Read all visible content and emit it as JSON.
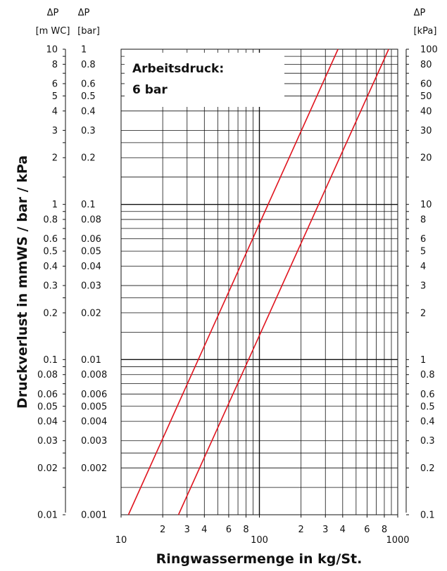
{
  "chart_data": {
    "type": "line",
    "title": "",
    "annotation": [
      "Arbeitsdruck:",
      "6 bar"
    ],
    "xlabel": "Ringwassermenge in kg/St.",
    "ylabel": "Druckverlust in mmWS / bar / kPa",
    "x_scale": "log",
    "y_scale": "log",
    "xlim": [
      10,
      1000
    ],
    "ylim": [
      0.001,
      1
    ],
    "grid": true,
    "x_tick_labels": [
      {
        "v": 10,
        "t": "10"
      },
      {
        "v": 20,
        "t": "2"
      },
      {
        "v": 30,
        "t": "3"
      },
      {
        "v": 40,
        "t": "4"
      },
      {
        "v": 60,
        "t": "6"
      },
      {
        "v": 80,
        "t": "8"
      },
      {
        "v": 100,
        "t": "100"
      },
      {
        "v": 200,
        "t": "2"
      },
      {
        "v": 300,
        "t": "3"
      },
      {
        "v": 400,
        "t": "4"
      },
      {
        "v": 600,
        "t": "6"
      },
      {
        "v": 800,
        "t": "8"
      },
      {
        "v": 1000,
        "t": "1000"
      }
    ],
    "left_axis_mwc": {
      "header": [
        "ΔP",
        "[m WC]"
      ],
      "labels": [
        {
          "v": 1,
          "t": "10"
        },
        {
          "v": 0.8,
          "t": "8"
        },
        {
          "v": 0.6,
          "t": "6"
        },
        {
          "v": 0.5,
          "t": "5"
        },
        {
          "v": 0.4,
          "t": "4"
        },
        {
          "v": 0.3,
          "t": "3"
        },
        {
          "v": 0.2,
          "t": "2"
        },
        {
          "v": 0.1,
          "t": "1"
        },
        {
          "v": 0.08,
          "t": "0.8"
        },
        {
          "v": 0.06,
          "t": "0.6"
        },
        {
          "v": 0.05,
          "t": "0.5"
        },
        {
          "v": 0.04,
          "t": "0.4"
        },
        {
          "v": 0.03,
          "t": "0.3"
        },
        {
          "v": 0.02,
          "t": "0.2"
        },
        {
          "v": 0.01,
          "t": "0.1"
        },
        {
          "v": 0.008,
          "t": "0.08"
        },
        {
          "v": 0.006,
          "t": "0.06"
        },
        {
          "v": 0.005,
          "t": "0.05"
        },
        {
          "v": 0.004,
          "t": "0.04"
        },
        {
          "v": 0.003,
          "t": "0.03"
        },
        {
          "v": 0.002,
          "t": "0.02"
        },
        {
          "v": 0.001,
          "t": "0.01"
        }
      ]
    },
    "left_axis_bar": {
      "header": [
        "ΔP",
        "[bar]"
      ],
      "labels": [
        {
          "v": 1,
          "t": "1"
        },
        {
          "v": 0.8,
          "t": "0.8"
        },
        {
          "v": 0.6,
          "t": "0.6"
        },
        {
          "v": 0.5,
          "t": "0.5"
        },
        {
          "v": 0.4,
          "t": "0.4"
        },
        {
          "v": 0.3,
          "t": "0.3"
        },
        {
          "v": 0.2,
          "t": "0.2"
        },
        {
          "v": 0.1,
          "t": "0.1"
        },
        {
          "v": 0.08,
          "t": "0.08"
        },
        {
          "v": 0.06,
          "t": "0.06"
        },
        {
          "v": 0.05,
          "t": "0.05"
        },
        {
          "v": 0.04,
          "t": "0.04"
        },
        {
          "v": 0.03,
          "t": "0.03"
        },
        {
          "v": 0.02,
          "t": "0.02"
        },
        {
          "v": 0.01,
          "t": "0.01"
        },
        {
          "v": 0.008,
          "t": "0.008"
        },
        {
          "v": 0.006,
          "t": "0.006"
        },
        {
          "v": 0.005,
          "t": "0.005"
        },
        {
          "v": 0.004,
          "t": "0.004"
        },
        {
          "v": 0.003,
          "t": "0.003"
        },
        {
          "v": 0.002,
          "t": "0.002"
        },
        {
          "v": 0.001,
          "t": "0.001"
        }
      ]
    },
    "right_axis_kpa": {
      "header": [
        "ΔP",
        "[kPa]"
      ],
      "labels": [
        {
          "v": 1,
          "t": "100"
        },
        {
          "v": 0.8,
          "t": "80"
        },
        {
          "v": 0.6,
          "t": "60"
        },
        {
          "v": 0.5,
          "t": "50"
        },
        {
          "v": 0.4,
          "t": "40"
        },
        {
          "v": 0.3,
          "t": "30"
        },
        {
          "v": 0.2,
          "t": "20"
        },
        {
          "v": 0.1,
          "t": "10"
        },
        {
          "v": 0.08,
          "t": "8"
        },
        {
          "v": 0.06,
          "t": "6"
        },
        {
          "v": 0.05,
          "t": "5"
        },
        {
          "v": 0.04,
          "t": "4"
        },
        {
          "v": 0.03,
          "t": "3"
        },
        {
          "v": 0.02,
          "t": "2"
        },
        {
          "v": 0.01,
          "t": "1"
        },
        {
          "v": 0.008,
          "t": "0.8"
        },
        {
          "v": 0.006,
          "t": "0.6"
        },
        {
          "v": 0.005,
          "t": "0.5"
        },
        {
          "v": 0.004,
          "t": "0.4"
        },
        {
          "v": 0.003,
          "t": "0.3"
        },
        {
          "v": 0.002,
          "t": "0.2"
        },
        {
          "v": 0.001,
          "t": "0.1"
        }
      ]
    },
    "series": [
      {
        "color": "#e0141e",
        "points": [
          [
            11.3,
            0.001
          ],
          [
            370,
            1
          ]
        ]
      },
      {
        "color": "#e0141e",
        "points": [
          [
            26,
            0.001
          ],
          [
            860,
            1
          ]
        ]
      }
    ]
  }
}
